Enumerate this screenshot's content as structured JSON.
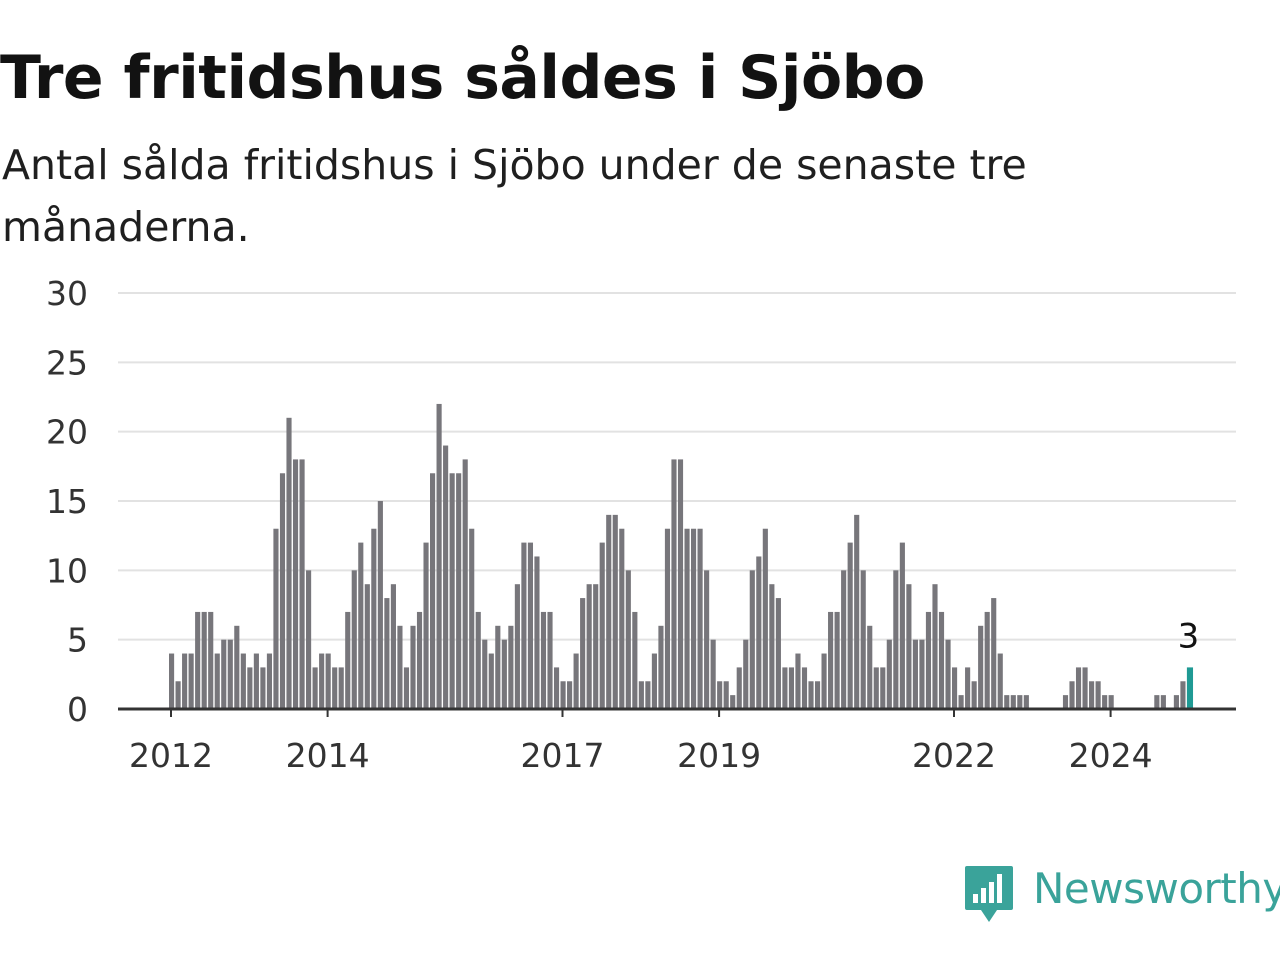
{
  "header": {
    "title": "Tre fritidshus såldes i Sjöbo",
    "subtitle": "Antal sålda fritidshus i Sjöbo under de senaste tre månaderna."
  },
  "brand": {
    "name": "Newsworthy",
    "icon": "newsworthy-bar-chart-icon",
    "color": "#3aa39a"
  },
  "colors": {
    "bar": "#77767b",
    "highlight": "#1f9a94",
    "grid": "#e2e2e2",
    "axis": "#333333"
  },
  "chart_data": {
    "type": "bar",
    "ylim": [
      0,
      30
    ],
    "yticks": [
      0,
      5,
      10,
      15,
      20,
      25,
      30
    ],
    "grid": true,
    "xticks": [
      "2012",
      "2014",
      "2017",
      "2019",
      "2022",
      "2024"
    ],
    "annotation": {
      "text": "3"
    },
    "highlight_last": true,
    "series": [
      {
        "values": [
          4,
          2,
          4,
          4,
          7,
          7,
          7,
          4,
          5,
          5,
          6,
          4,
          3,
          4,
          3,
          4,
          13,
          17,
          21,
          18,
          18,
          10,
          3,
          4,
          4,
          3,
          3,
          7,
          10,
          12,
          9,
          13,
          15,
          8,
          9,
          6,
          3,
          6,
          7,
          12,
          17,
          22,
          19,
          17,
          17,
          18,
          13,
          7,
          5,
          4,
          6,
          5,
          6,
          9,
          12,
          12,
          11,
          7,
          7,
          3,
          2,
          2,
          4,
          8,
          9,
          9,
          12,
          14,
          14,
          13,
          10,
          7,
          2,
          2,
          4,
          6,
          13,
          18,
          18,
          13,
          13,
          13,
          10,
          5,
          2,
          2,
          1,
          3,
          5,
          10,
          11,
          13,
          9,
          8,
          3,
          3,
          4,
          3,
          2,
          2,
          4,
          7,
          7,
          10,
          12,
          14,
          10,
          6,
          3,
          3,
          5,
          10,
          12,
          9,
          5,
          5,
          7,
          9,
          7,
          5,
          3,
          1,
          3,
          2,
          6,
          7,
          8,
          4,
          1,
          1,
          1,
          1,
          0,
          0,
          0,
          0,
          0,
          1,
          2,
          3,
          3,
          2,
          2,
          1,
          1,
          0,
          0,
          0,
          0,
          0,
          0,
          1,
          1,
          0,
          1,
          2,
          3
        ]
      }
    ]
  }
}
